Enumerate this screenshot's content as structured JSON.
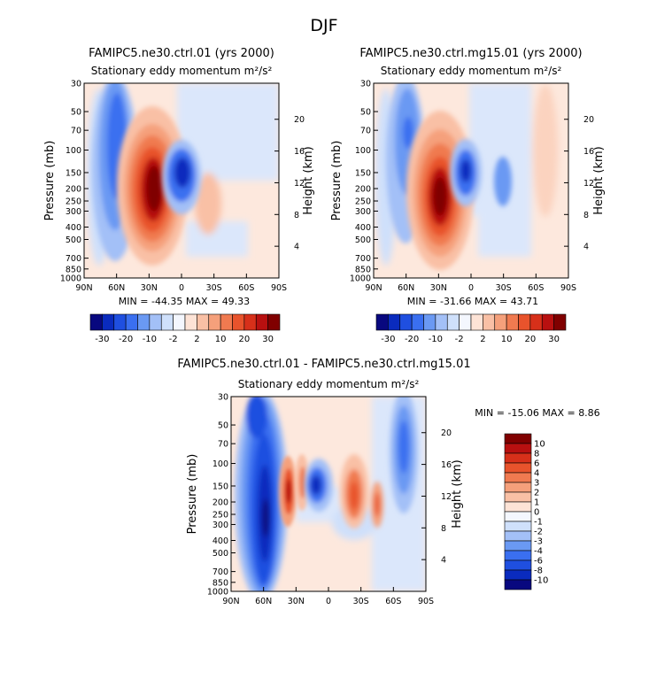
{
  "page": {
    "season": "DJF"
  },
  "panels": [
    {
      "title": "FAMIPC5.ne30.ctrl.01 (yrs 2000)",
      "subtitle": "Stationary eddy momentum",
      "units": "m²/s²",
      "stats": "MIN = -44.35   MAX =  49.33"
    },
    {
      "title": "FAMIPC5.ne30.ctrl.mg15.01 (yrs 2000)",
      "subtitle": "Stationary eddy momentum",
      "units": "m²/s²",
      "stats": "MIN = -31.66   MAX =  43.71"
    },
    {
      "title": "FAMIPC5.ne30.ctrl.01 - FAMIPC5.ne30.ctrl.mg15.01",
      "subtitle": "Stationary eddy momentum",
      "units": "m²/s²",
      "stats": "MIN = -15.06   MAX =   8.86"
    }
  ],
  "chart_data": [
    {
      "type": "heatmap",
      "title": "FAMIPC5.ne30.ctrl.01 (yrs 2000)",
      "subtitle": "Stationary eddy momentum m²/s²",
      "xlabel": "",
      "ylabel": "Pressure (mb)",
      "ylabel_right": "Height (km)",
      "x_ticks": [
        "90N",
        "60N",
        "30N",
        "0",
        "30S",
        "60S",
        "90S"
      ],
      "x_tick_values": [
        90,
        60,
        30,
        0,
        -30,
        -60,
        -90
      ],
      "y_ticks": [
        "30",
        "50",
        "70",
        "100",
        "150",
        "200",
        "250",
        "300",
        "400",
        "500",
        "700",
        "850",
        "1000"
      ],
      "y_tick_values": [
        30,
        50,
        70,
        100,
        150,
        200,
        250,
        300,
        400,
        500,
        700,
        850,
        1000
      ],
      "y2_ticks": [
        "4",
        "8",
        "12",
        "16",
        "20"
      ],
      "xlim": [
        90,
        -90
      ],
      "ylim": [
        1000,
        30
      ],
      "min": -44.35,
      "max": 49.33,
      "features": [
        {
          "lat": 28,
          "pressure": 220,
          "value": 49,
          "sign": "positive"
        },
        {
          "lat": 9,
          "pressure": 150,
          "value": -40,
          "sign": "negative"
        },
        {
          "lat": 58,
          "pressure": 150,
          "value": -25,
          "sign": "negative"
        }
      ]
    },
    {
      "type": "heatmap",
      "title": "FAMIPC5.ne30.ctrl.mg15.01 (yrs 2000)",
      "subtitle": "Stationary eddy momentum m²/s²",
      "xlabel": "",
      "ylabel": "Pressure (mb)",
      "ylabel_right": "Height (km)",
      "x_ticks": [
        "90N",
        "60N",
        "30N",
        "0",
        "30S",
        "60S",
        "90S"
      ],
      "x_tick_values": [
        90,
        60,
        30,
        0,
        -30,
        -60,
        -90
      ],
      "y_ticks": [
        "30",
        "50",
        "70",
        "100",
        "150",
        "200",
        "250",
        "300",
        "400",
        "500",
        "700",
        "850",
        "1000"
      ],
      "y_tick_values": [
        30,
        50,
        70,
        100,
        150,
        200,
        250,
        300,
        400,
        500,
        700,
        850,
        1000
      ],
      "y2_ticks": [
        "4",
        "8",
        "12",
        "16",
        "20"
      ],
      "xlim": [
        90,
        -90
      ],
      "ylim": [
        1000,
        30
      ],
      "min": -31.66,
      "max": 43.71,
      "features": [
        {
          "lat": 28,
          "pressure": 230,
          "value": 43,
          "sign": "positive"
        },
        {
          "lat": 8,
          "pressure": 150,
          "value": -30,
          "sign": "negative"
        },
        {
          "lat": 58,
          "pressure": 120,
          "value": -15,
          "sign": "negative"
        }
      ]
    },
    {
      "type": "heatmap",
      "title": "FAMIPC5.ne30.ctrl.01 - FAMIPC5.ne30.ctrl.mg15.01",
      "subtitle": "Stationary eddy momentum m²/s²",
      "xlabel": "",
      "ylabel": "Pressure (mb)",
      "ylabel_right": "Height (km)",
      "x_ticks": [
        "90N",
        "60N",
        "30N",
        "0",
        "30S",
        "60S",
        "90S"
      ],
      "x_tick_values": [
        90,
        60,
        30,
        0,
        -30,
        -60,
        -90
      ],
      "y_ticks": [
        "30",
        "50",
        "70",
        "100",
        "150",
        "200",
        "250",
        "300",
        "400",
        "500",
        "700",
        "850",
        "1000"
      ],
      "y_tick_values": [
        30,
        50,
        70,
        100,
        150,
        200,
        250,
        300,
        400,
        500,
        700,
        850,
        1000
      ],
      "y2_ticks": [
        "4",
        "8",
        "12",
        "16",
        "20"
      ],
      "xlim": [
        90,
        -90
      ],
      "ylim": [
        1000,
        30
      ],
      "min": -15.06,
      "max": 8.86,
      "features": [
        {
          "lat": 62,
          "pressure": 250,
          "value": -15,
          "sign": "negative"
        },
        {
          "lat": 38,
          "pressure": 180,
          "value": 8,
          "sign": "positive"
        },
        {
          "lat": 12,
          "pressure": 150,
          "value": -10,
          "sign": "negative"
        },
        {
          "lat": -20,
          "pressure": 170,
          "value": 6,
          "sign": "positive"
        },
        {
          "lat": -72,
          "pressure": 100,
          "value": -10,
          "sign": "negative"
        }
      ]
    }
  ],
  "colorbar_top": {
    "labels": [
      "-30",
      "-20",
      "-10",
      "-2",
      "2",
      "10",
      "20",
      "30"
    ],
    "colors": [
      "#08087f",
      "#0a2bbe",
      "#1f4fe0",
      "#3a6ff0",
      "#6a99f3",
      "#a3c0f7",
      "#cfe0fb",
      "#f4f7fe",
      "#fde3d6",
      "#f9c0a5",
      "#f5a07b",
      "#f07a50",
      "#e8532c",
      "#d7301a",
      "#b81010",
      "#800000"
    ]
  },
  "colorbar_diff": {
    "labels": [
      "10",
      "8",
      "6",
      "4",
      "3",
      "2",
      "1",
      "0",
      "-1",
      "-2",
      "-3",
      "-4",
      "-6",
      "-8",
      "-10"
    ],
    "colors": [
      "#800000",
      "#b81010",
      "#d7301a",
      "#e8532c",
      "#f07a50",
      "#f5a07b",
      "#f9c0a5",
      "#fde3d6",
      "#f4f7fe",
      "#cfe0fb",
      "#a3c0f7",
      "#6a99f3",
      "#3a6ff0",
      "#1f4fe0",
      "#0a2bbe",
      "#08087f"
    ]
  }
}
